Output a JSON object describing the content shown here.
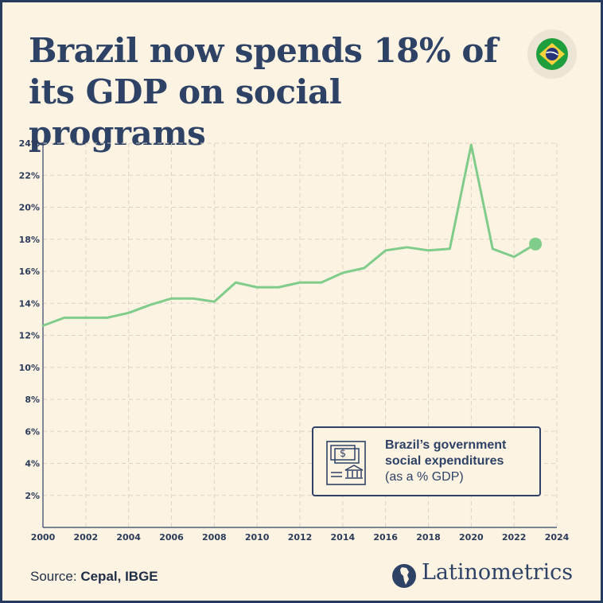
{
  "title_line1": "Brazil now spends 18% of",
  "title_line2": "its GDP on social programs",
  "legend": {
    "line1": "Brazil’s government",
    "line2": "social expenditures",
    "line3": "(as a % GDP)"
  },
  "source": {
    "label": "Source:",
    "value": "Cepal, IBGE"
  },
  "brand": "Latinometrics",
  "colors": {
    "line": "#80cc8a",
    "text": "#2e4266",
    "background": "#fdf3e3",
    "grid": "#ddd3c1"
  },
  "chart_data": {
    "type": "line",
    "title": "Brazil now spends 18% of its GDP on social programs",
    "xlabel": "",
    "ylabel": "",
    "x": [
      2000,
      2001,
      2002,
      2003,
      2004,
      2005,
      2006,
      2007,
      2008,
      2009,
      2010,
      2011,
      2012,
      2013,
      2014,
      2015,
      2016,
      2017,
      2018,
      2019,
      2020,
      2021,
      2022,
      2023
    ],
    "series": [
      {
        "name": "Brazil’s government social expenditures (as a % GDP)",
        "values": [
          12.6,
          13.1,
          13.1,
          13.1,
          13.4,
          13.9,
          14.3,
          14.3,
          14.1,
          15.3,
          15.0,
          15.0,
          15.3,
          15.3,
          15.9,
          16.2,
          17.3,
          17.5,
          17.3,
          17.4,
          23.9,
          17.4,
          16.9,
          17.7
        ]
      }
    ],
    "xlim": [
      2000,
      2024
    ],
    "ylim": [
      0,
      24
    ],
    "x_ticks": [
      2000,
      2002,
      2004,
      2006,
      2008,
      2010,
      2012,
      2014,
      2016,
      2018,
      2020,
      2022,
      2024
    ],
    "y_ticks": [
      2,
      4,
      6,
      8,
      10,
      12,
      14,
      16,
      18,
      20,
      22,
      24
    ],
    "y_tick_labels": [
      "2%",
      "4%",
      "6%",
      "8%",
      "10%",
      "12%",
      "14%",
      "16%",
      "18%",
      "20%",
      "22%",
      "24%"
    ],
    "highlight_last_point": true,
    "grid": true
  }
}
